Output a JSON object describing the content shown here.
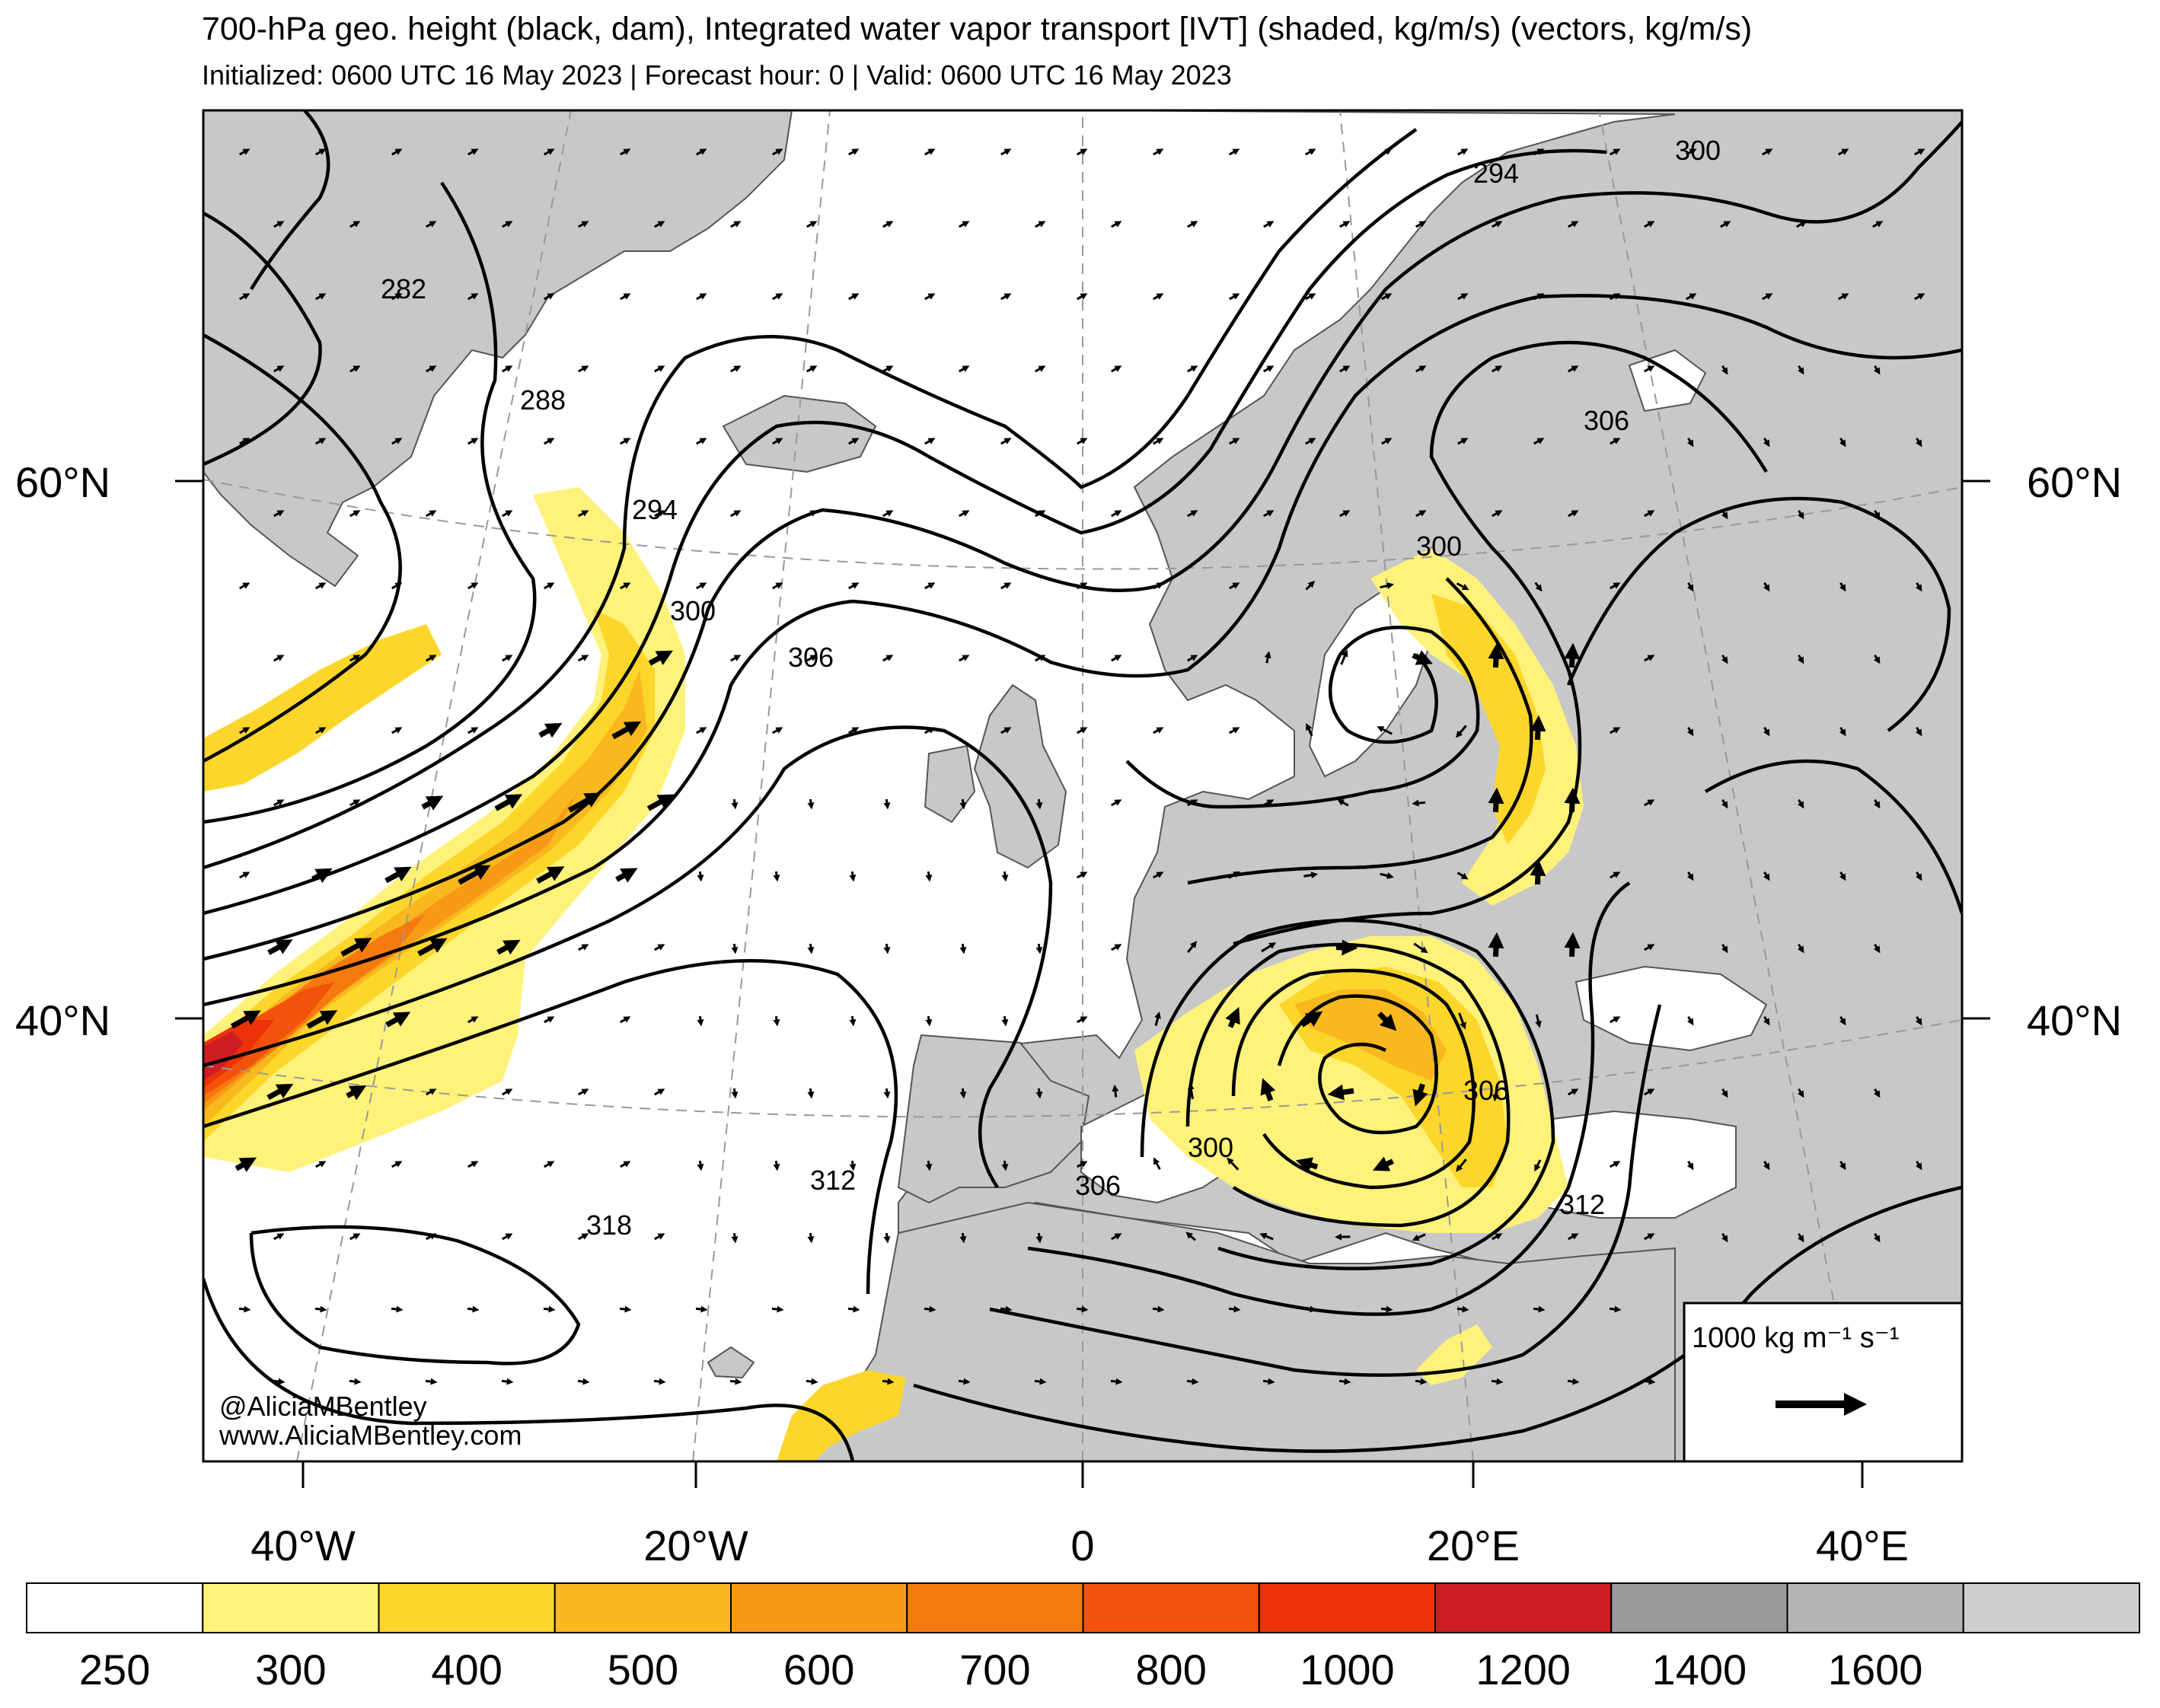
{
  "header": {
    "title": "700-hPa geo. height (black, dam), Integrated water vapor transport [IVT] (shaded, kg/m/s) (vectors, kg/m/s)",
    "subtitle": "Initialized: 0600 UTC 16 May 2023 | Forecast hour: 0 | Valid: 0600 UTC 16 May 2023"
  },
  "map": {
    "lat_labels": [
      "60°N",
      "40°N"
    ],
    "lon_labels": [
      "40°W",
      "20°W",
      "0",
      "20°E",
      "40°E"
    ],
    "contour_labels": [
      "282",
      "288",
      "294",
      "300",
      "306",
      "294",
      "300",
      "306",
      "300",
      "306",
      "300",
      "312",
      "318",
      "306",
      "312"
    ],
    "land_color": "#c8c8c8",
    "ocean_color": "#ffffff"
  },
  "reference_vector": {
    "label": "1000 kg m⁻¹ s⁻¹"
  },
  "credits": {
    "handle": "@AliciaMBentley",
    "site": "www.AliciaMBentley.com"
  },
  "colorbar": {
    "ticks": [
      "250",
      "300",
      "400",
      "500",
      "600",
      "700",
      "800",
      "1000",
      "1200",
      "1400",
      "1600"
    ],
    "colors": [
      "#ffffff",
      "#fff27a",
      "#fcd62b",
      "#f8b81e",
      "#f79b17",
      "#f6790f",
      "#f2520a",
      "#ed3207",
      "#cc1e22",
      "#9a9a9a",
      "#b5b5b5",
      "#cfcfcf"
    ]
  }
}
